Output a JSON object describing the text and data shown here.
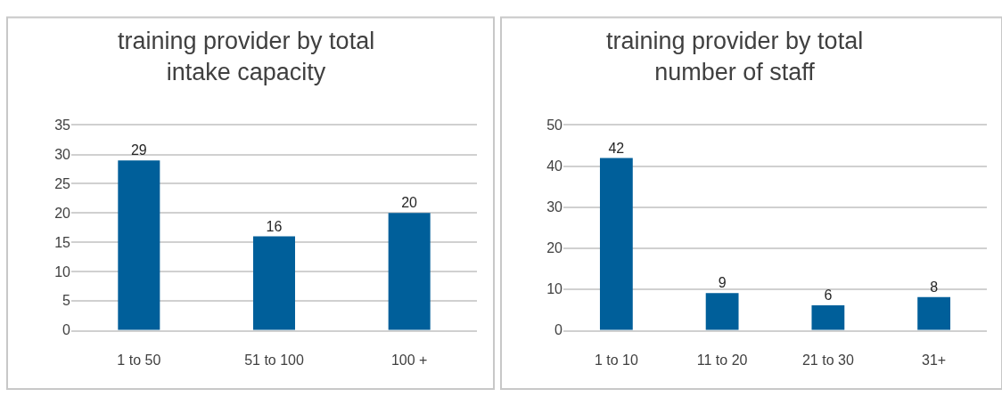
{
  "chart_data": [
    {
      "type": "bar",
      "title": "training provider by total intake capacity",
      "categories": [
        "1 to 50",
        "51 to 100",
        "100 +"
      ],
      "values": [
        29,
        16,
        20
      ],
      "color": "#005f9a",
      "ylim": [
        0,
        35
      ],
      "yticks": [
        0,
        5,
        10,
        15,
        20,
        25,
        30,
        35
      ],
      "grid": "y",
      "data_labels": true
    },
    {
      "type": "bar",
      "title": "training provider by total number of staff",
      "categories": [
        "1 to 10",
        "11 to 20",
        "21 to 30",
        "31+"
      ],
      "values": [
        42,
        9,
        6,
        8
      ],
      "color": "#005f9a",
      "ylim": [
        0,
        50
      ],
      "yticks": [
        0,
        10,
        20,
        30,
        40,
        50
      ],
      "grid": "y",
      "data_labels": true
    }
  ]
}
